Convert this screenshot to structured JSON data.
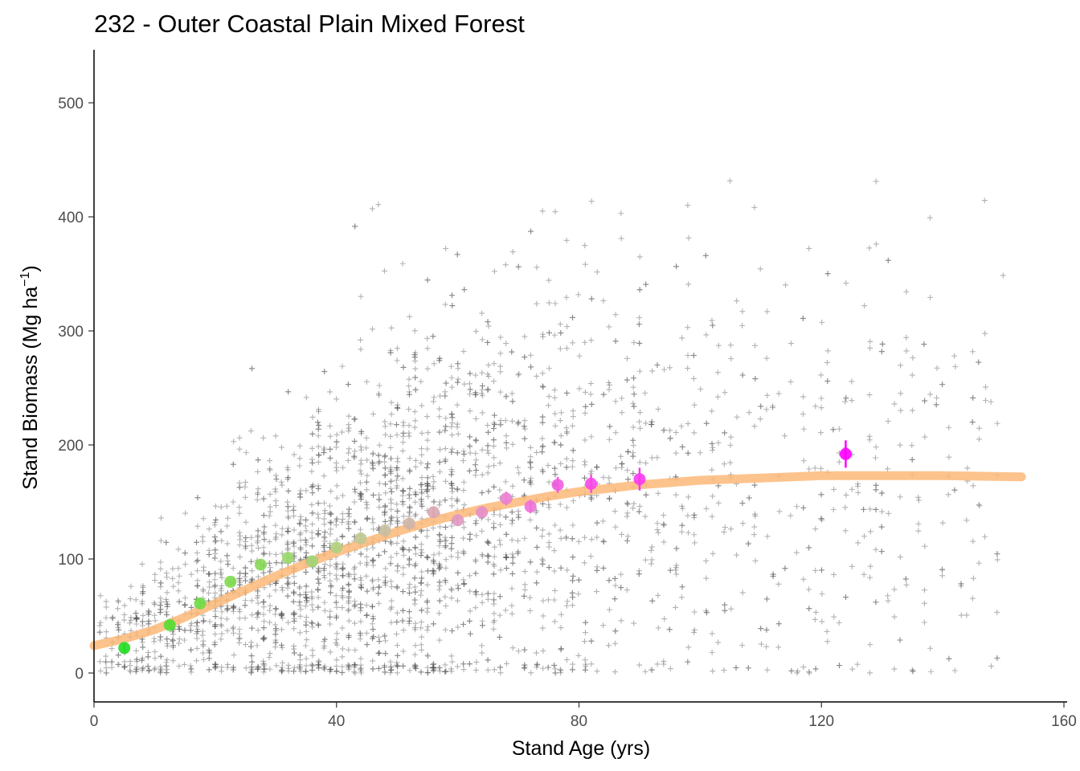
{
  "chart_data": {
    "type": "scatter",
    "title": "232 - Outer Coastal Plain Mixed Forest",
    "xlabel": "Stand Age (yrs)",
    "ylabel_main": "Stand Biomass (Mg ha",
    "ylabel_sup": "−1",
    "ylabel_close": ")",
    "xlim": [
      0,
      160
    ],
    "ylim": [
      -25,
      545
    ],
    "xticks": [
      0,
      40,
      80,
      120,
      160
    ],
    "yticks": [
      0,
      100,
      200,
      300,
      400,
      500
    ],
    "grid": false,
    "legend": "none",
    "raw_points_note": "grey plus markers, individual plots",
    "colors": {
      "raw": "#555555",
      "fit": "#fdb879",
      "bin_start": "#22dd22",
      "bin_end": "#ff00ff"
    },
    "fitted_curve": {
      "x": [
        0,
        5,
        10,
        15,
        20,
        25,
        30,
        35,
        40,
        45,
        50,
        55,
        60,
        65,
        70,
        75,
        80,
        85,
        90,
        95,
        100,
        110,
        120,
        130,
        140,
        153
      ],
      "y": [
        24,
        30,
        38,
        49,
        61,
        73,
        85,
        96,
        106,
        115,
        124,
        132,
        139,
        145,
        150,
        155,
        159,
        162,
        165,
        167,
        169,
        171,
        173,
        173,
        173,
        172
      ]
    },
    "binned_means": {
      "x": [
        5,
        12.5,
        17.5,
        22.5,
        27.5,
        32,
        36,
        40,
        44,
        48,
        52,
        56,
        60,
        64,
        68,
        72,
        76.5,
        82,
        90,
        124
      ],
      "y": [
        22,
        42,
        61,
        80,
        95,
        101,
        98,
        110,
        118,
        125,
        131,
        141,
        134,
        141,
        153,
        146,
        165,
        166,
        170,
        192
      ],
      "err": [
        3,
        3,
        3,
        3,
        4,
        4,
        4,
        4,
        4,
        4,
        4,
        5,
        5,
        5,
        6,
        6,
        7,
        8,
        10,
        12
      ],
      "colors": [
        "#22dd22",
        "#55dd33",
        "#6fdb44",
        "#7fdc50",
        "#8ad95a",
        "#98d86a",
        "#a2d475",
        "#b1d080",
        "#c0c890",
        "#c8bfa0",
        "#cfb5a8",
        "#d9a6b0",
        "#e199c0",
        "#e58ec8",
        "#ea7fd0",
        "#ee70d8",
        "#f25ce0",
        "#f548e8",
        "#f838f0",
        "#ff00ff"
      ]
    }
  }
}
